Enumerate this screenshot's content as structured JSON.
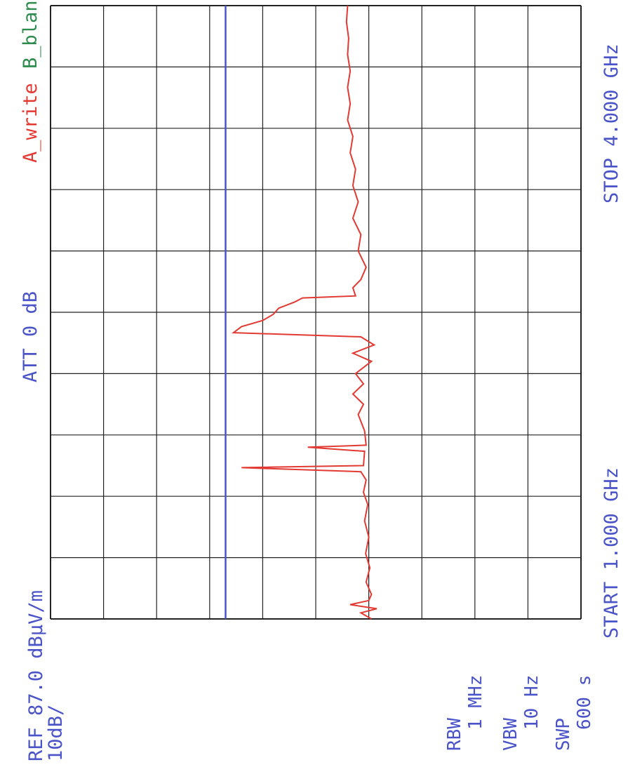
{
  "header": {
    "ref_label": "REF 87.0 dBμV/m",
    "scale_label": "10dB/",
    "att_label": "ATT 0 dB",
    "trace_a_label": "A_write",
    "trace_b_label": "B_blank"
  },
  "footer": {
    "start_label": "START 1.000 GHz",
    "stop_label": "STOP 4.000 GHz"
  },
  "settings": {
    "rbw_label": "RBW",
    "rbw_value": "1 MHz",
    "vbw_label": "VBW",
    "vbw_value": "10 Hz",
    "swp_label": "SWP",
    "swp_value": "600 s"
  },
  "colors": {
    "trace_a": "#e23a33",
    "limit_line": "#4a54c8",
    "annotation": "#4a54c8",
    "grid": "#222222",
    "trace_b_label": "#2f8c4e"
  },
  "chart_data": {
    "type": "line",
    "x_unit": "GHz",
    "y_unit": "dBμV/m",
    "xlim": [
      1.0,
      4.0
    ],
    "ylim": [
      -13,
      87
    ],
    "reference_level": 87.0,
    "scale_per_div": 10,
    "grid": true,
    "limit_line": {
      "value": 54
    },
    "series": [
      {
        "name": "A_write",
        "points": [
          [
            1.0,
            26.5
          ],
          [
            1.03,
            28.5
          ],
          [
            1.05,
            25.5
          ],
          [
            1.07,
            30.5
          ],
          [
            1.09,
            27.0
          ],
          [
            1.12,
            26.5
          ],
          [
            1.18,
            27.5
          ],
          [
            1.25,
            26.8
          ],
          [
            1.32,
            27.6
          ],
          [
            1.4,
            27.0
          ],
          [
            1.48,
            27.8
          ],
          [
            1.56,
            27.2
          ],
          [
            1.62,
            28.0
          ],
          [
            1.68,
            27.5
          ],
          [
            1.72,
            28.5
          ],
          [
            1.74,
            51.0
          ],
          [
            1.75,
            28.0
          ],
          [
            1.82,
            27.8
          ],
          [
            1.84,
            38.5
          ],
          [
            1.85,
            27.5
          ],
          [
            1.92,
            27.8
          ],
          [
            2.0,
            29.0
          ],
          [
            2.05,
            28.0
          ],
          [
            2.1,
            30.0
          ],
          [
            2.15,
            28.0
          ],
          [
            2.2,
            29.5
          ],
          [
            2.26,
            26.5
          ],
          [
            2.3,
            30.0
          ],
          [
            2.34,
            26.0
          ],
          [
            2.38,
            28.5
          ],
          [
            2.4,
            52.5
          ],
          [
            2.43,
            51.0
          ],
          [
            2.46,
            47.0
          ],
          [
            2.49,
            45.0
          ],
          [
            2.52,
            44.0
          ],
          [
            2.55,
            41.0
          ],
          [
            2.57,
            39.5
          ],
          [
            2.58,
            29.5
          ],
          [
            2.62,
            30.0
          ],
          [
            2.66,
            28.5
          ],
          [
            2.72,
            27.5
          ],
          [
            2.8,
            29.0
          ],
          [
            2.88,
            28.5
          ],
          [
            2.96,
            30.0
          ],
          [
            3.04,
            29.0
          ],
          [
            3.12,
            30.0
          ],
          [
            3.2,
            29.5
          ],
          [
            3.28,
            30.5
          ],
          [
            3.36,
            30.0
          ],
          [
            3.44,
            31.0
          ],
          [
            3.52,
            30.5
          ],
          [
            3.6,
            31.0
          ],
          [
            3.68,
            30.5
          ],
          [
            3.76,
            31.0
          ],
          [
            3.84,
            30.8
          ],
          [
            3.92,
            31.2
          ],
          [
            4.0,
            31.0
          ]
        ]
      }
    ]
  }
}
